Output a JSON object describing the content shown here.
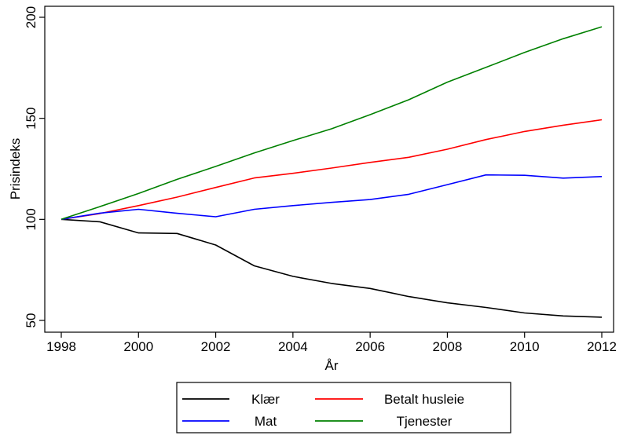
{
  "chart_data": {
    "type": "line",
    "xlabel": "År",
    "ylabel": "Prisindeks",
    "x": [
      1998,
      1999,
      2000,
      2001,
      2002,
      2003,
      2004,
      2005,
      2006,
      2007,
      2008,
      2009,
      2010,
      2011,
      2012
    ],
    "xlim": [
      1998,
      2012
    ],
    "ylim": [
      50,
      200
    ],
    "xticks": [
      "1998",
      "2000",
      "2002",
      "2004",
      "2006",
      "2008",
      "2010",
      "2012"
    ],
    "yticks": [
      "50",
      "100",
      "150",
      "200"
    ],
    "grid": false,
    "legend_position": "bottom",
    "series": [
      {
        "name": "Klær",
        "color": "#000000",
        "values": [
          100,
          98.8,
          93.3,
          93.0,
          87.3,
          77.0,
          71.8,
          68.3,
          65.8,
          61.8,
          58.7,
          56.4,
          53.7,
          52.2,
          51.6
        ]
      },
      {
        "name": "Betalt husleie",
        "color": "#ff0000",
        "values": [
          100,
          102.9,
          106.8,
          111.0,
          115.8,
          120.5,
          122.8,
          125.4,
          128.2,
          130.7,
          134.7,
          139.5,
          143.5,
          146.6,
          149.3
        ]
      },
      {
        "name": "Mat",
        "color": "#0000ff",
        "values": [
          100,
          103.1,
          105.0,
          103.0,
          101.3,
          105.0,
          106.8,
          108.4,
          109.8,
          112.4,
          117.2,
          122.0,
          121.8,
          120.4,
          121.2
        ]
      },
      {
        "name": "Tjenester",
        "color": "#008000",
        "values": [
          100,
          106.3,
          112.8,
          119.8,
          126.2,
          132.9,
          139.0,
          144.8,
          151.8,
          159.2,
          167.9,
          175.2,
          182.6,
          189.4,
          195.3
        ]
      }
    ]
  }
}
